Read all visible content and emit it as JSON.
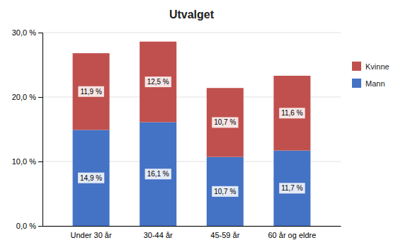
{
  "chart_data": {
    "type": "bar",
    "title": "Utvalget",
    "stacked": true,
    "categories": [
      "Under 30 år",
      "30-44 år",
      "45-59 år",
      "60 år og eldre"
    ],
    "series": [
      {
        "name": "Mann",
        "color": "#4472C4",
        "values": [
          14.9,
          16.1,
          10.7,
          11.7
        ],
        "value_labels": [
          "14,9 %",
          "16,1 %",
          "10,7 %",
          "11,7 %"
        ]
      },
      {
        "name": "Kvinne",
        "color": "#C0504D",
        "values": [
          11.9,
          12.5,
          10.7,
          11.6
        ],
        "value_labels": [
          "11,9 %",
          "12,5 %",
          "10,7 %",
          "11,6 %"
        ]
      }
    ],
    "ylim": [
      0,
      30
    ],
    "yticks": [
      {
        "value": 0,
        "label": "0,0 %"
      },
      {
        "value": 10,
        "label": "10,0 %"
      },
      {
        "value": 20,
        "label": "20,0 %"
      },
      {
        "value": 30,
        "label": "30,0 %"
      }
    ],
    "grid": true,
    "data_labels": true,
    "legend": "right"
  }
}
